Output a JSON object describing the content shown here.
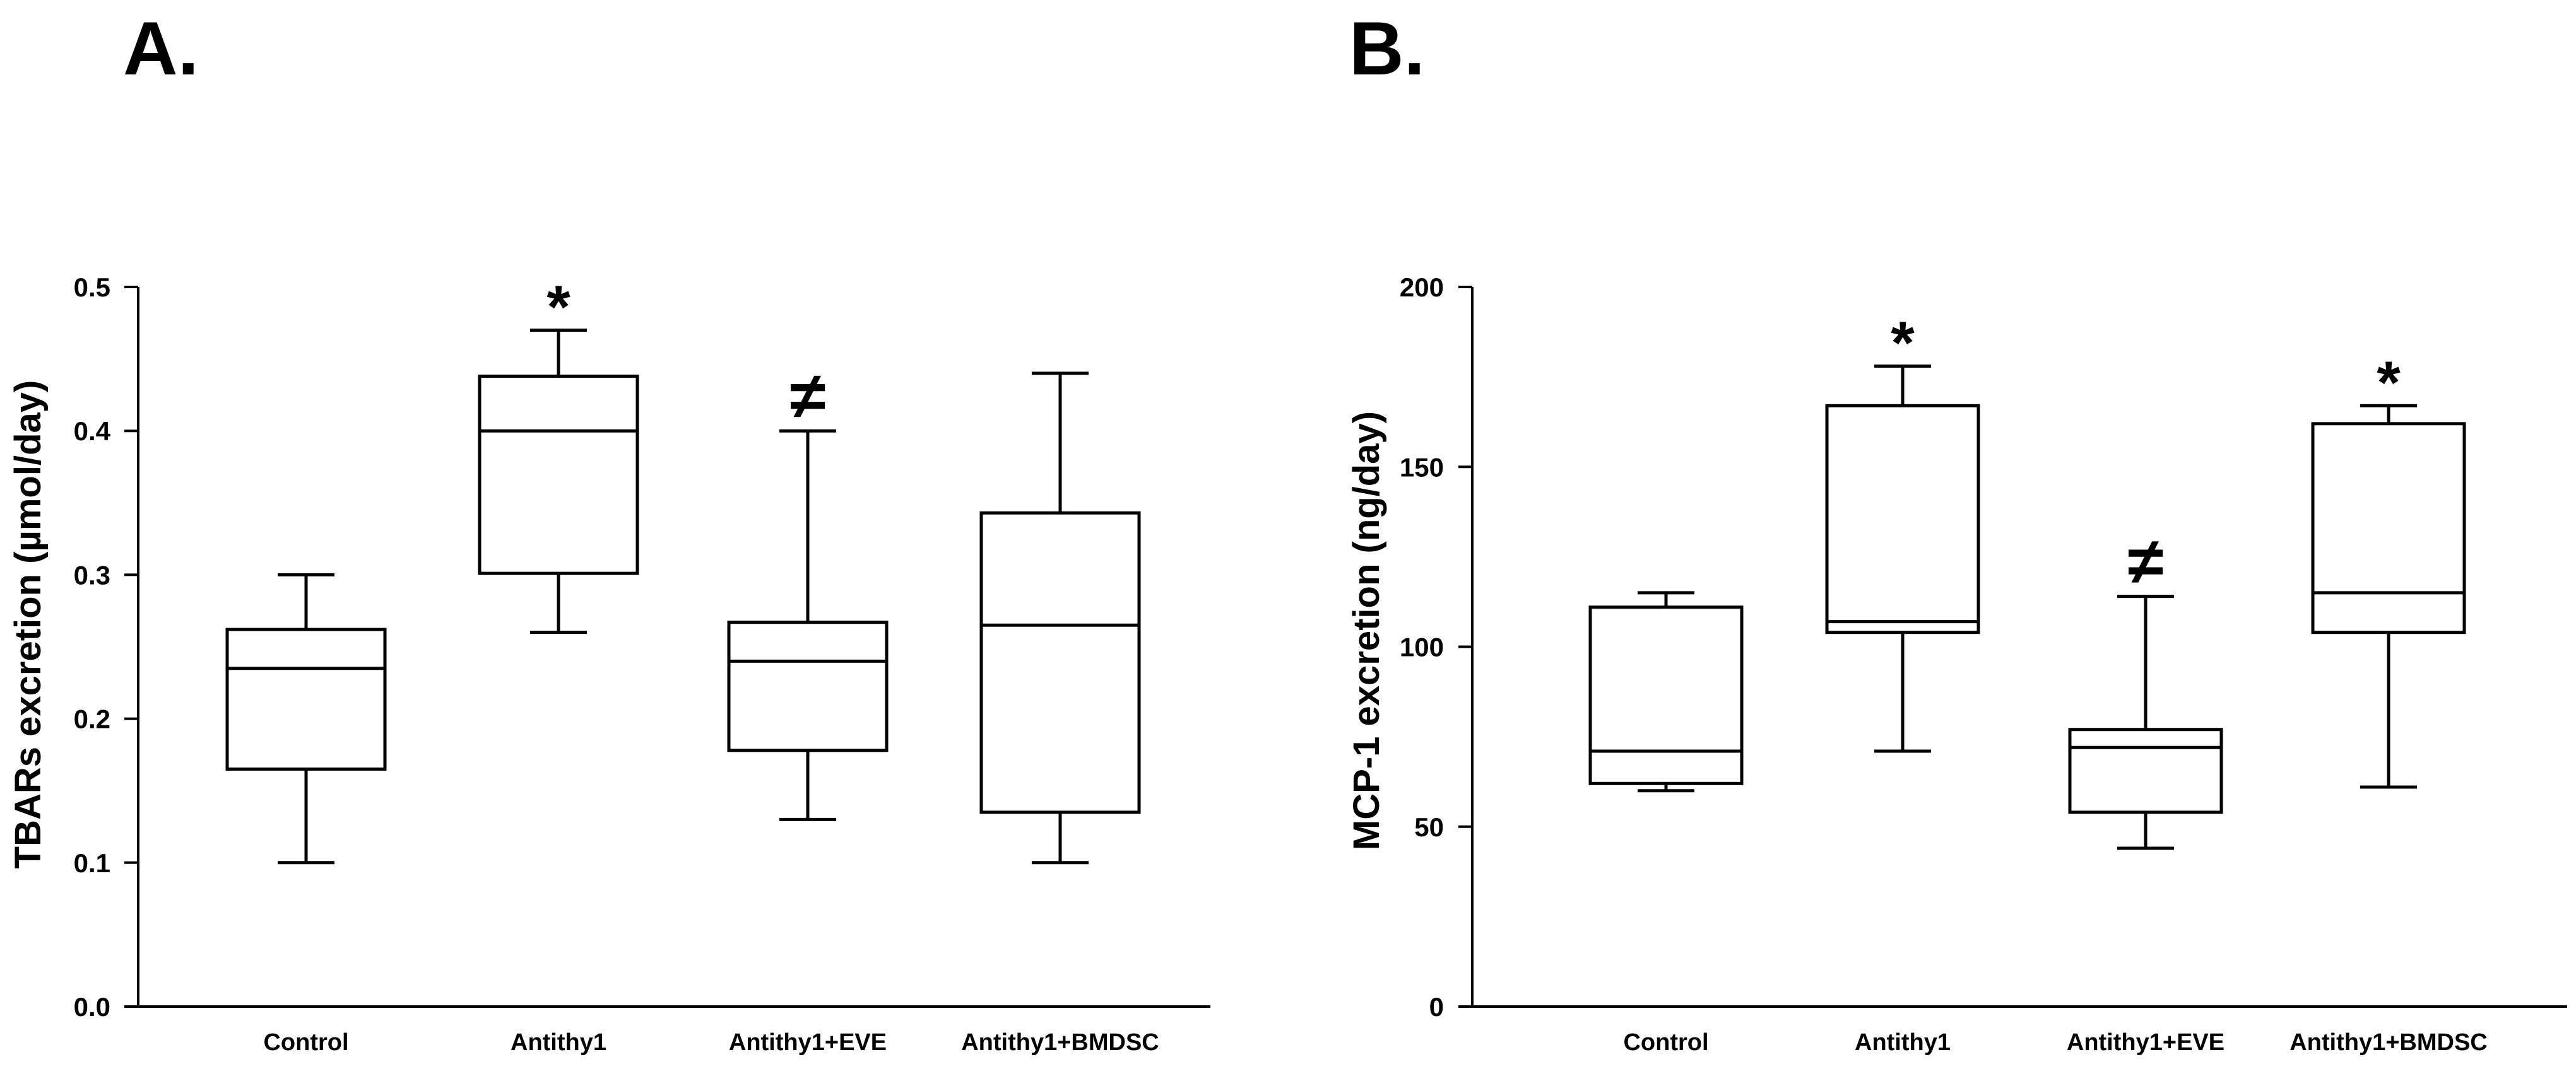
{
  "panels": [
    {
      "id": "A",
      "label": "A."
    },
    {
      "id": "B",
      "label": "B."
    }
  ],
  "chart_data": [
    {
      "type": "boxplot",
      "panel_label": "A.",
      "title": "",
      "xlabel": "",
      "ylabel": "TBARs excretion (µmol/day)",
      "ylim": [
        0,
        0.5
      ],
      "yticks": [
        0.0,
        0.1,
        0.2,
        0.3,
        0.4,
        0.5
      ],
      "ytick_labels": [
        "0.0",
        "0.1",
        "0.2",
        "0.3",
        "0.4",
        "0.5"
      ],
      "categories": [
        "Control",
        "Antithy1",
        "Antithy1+EVE",
        "Antithy1+BMDSC"
      ],
      "boxes": [
        {
          "min": 0.1,
          "q1": 0.165,
          "median": 0.235,
          "q3": 0.262,
          "max": 0.3,
          "annotation": ""
        },
        {
          "min": 0.26,
          "q1": 0.301,
          "median": 0.4,
          "q3": 0.438,
          "max": 0.47,
          "annotation": "*"
        },
        {
          "min": 0.13,
          "q1": 0.178,
          "median": 0.24,
          "q3": 0.267,
          "max": 0.4,
          "annotation": "≠"
        },
        {
          "min": 0.1,
          "q1": 0.135,
          "median": 0.265,
          "q3": 0.343,
          "max": 0.44,
          "annotation": ""
        }
      ]
    },
    {
      "type": "boxplot",
      "panel_label": "B.",
      "title": "",
      "xlabel": "",
      "ylabel": "MCP-1 excretion (ng/day)",
      "ylim": [
        0,
        200
      ],
      "yticks": [
        0,
        50,
        100,
        150,
        200
      ],
      "ytick_labels": [
        "0",
        "50",
        "100",
        "150",
        "200"
      ],
      "categories": [
        "Control",
        "Antithy1",
        "Antithy1+EVE",
        "Antithy1+BMDSC"
      ],
      "boxes": [
        {
          "min": 60,
          "q1": 62,
          "median": 71,
          "q3": 111,
          "max": 115,
          "annotation": ""
        },
        {
          "min": 71,
          "q1": 104,
          "median": 107,
          "q3": 167,
          "max": 178,
          "annotation": "*"
        },
        {
          "min": 44,
          "q1": 54,
          "median": 72,
          "q3": 77,
          "max": 114,
          "annotation": "≠"
        },
        {
          "min": 61,
          "q1": 104,
          "median": 115,
          "q3": 162,
          "max": 167,
          "annotation": "*"
        }
      ]
    }
  ]
}
